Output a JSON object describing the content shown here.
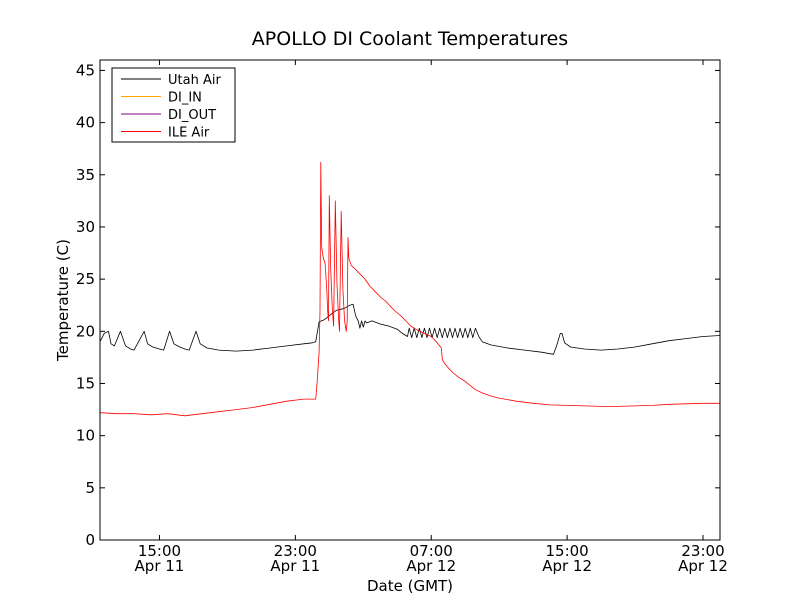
{
  "chart_data": {
    "type": "line",
    "title": "APOLLO DI Coolant Temperatures",
    "xlabel": "Date (GMT)",
    "ylabel": "Temperature (C)",
    "ylim": [
      0,
      46
    ],
    "yticks": [
      0,
      5,
      10,
      15,
      20,
      25,
      30,
      35,
      40,
      45
    ],
    "xlim_hours": [
      11.5,
      48.0
    ],
    "x_unit": "hours since Apr 11 00:00 GMT",
    "xticks": [
      {
        "hours": 15,
        "time": "15:00",
        "date": "Apr 11"
      },
      {
        "hours": 23,
        "time": "23:00",
        "date": "Apr 11"
      },
      {
        "hours": 31,
        "time": "07:00",
        "date": "Apr 12"
      },
      {
        "hours": 39,
        "time": "15:00",
        "date": "Apr 12"
      },
      {
        "hours": 47,
        "time": "23:00",
        "date": "Apr 12"
      }
    ],
    "legend_position": "top-left",
    "series": [
      {
        "name": "Utah Air",
        "color": "#000000",
        "points": [
          [
            11.5,
            19.0
          ],
          [
            11.75,
            19.8
          ],
          [
            12.0,
            20.0
          ],
          [
            12.15,
            18.8
          ],
          [
            12.35,
            18.6
          ],
          [
            12.7,
            20.0
          ],
          [
            13.0,
            18.6
          ],
          [
            13.3,
            18.3
          ],
          [
            13.5,
            18.2
          ],
          [
            14.1,
            20.0
          ],
          [
            14.3,
            18.8
          ],
          [
            14.6,
            18.5
          ],
          [
            15.0,
            18.3
          ],
          [
            15.25,
            18.2
          ],
          [
            15.6,
            20.0
          ],
          [
            15.85,
            18.8
          ],
          [
            16.2,
            18.5
          ],
          [
            16.5,
            18.3
          ],
          [
            16.75,
            18.2
          ],
          [
            17.15,
            20.0
          ],
          [
            17.4,
            18.8
          ],
          [
            17.8,
            18.4
          ],
          [
            18.5,
            18.2
          ],
          [
            19.5,
            18.1
          ],
          [
            20.5,
            18.2
          ],
          [
            21.5,
            18.4
          ],
          [
            22.5,
            18.6
          ],
          [
            23.5,
            18.8
          ],
          [
            24.0,
            18.9
          ],
          [
            24.2,
            19.0
          ],
          [
            24.4,
            20.9
          ],
          [
            24.7,
            21.1
          ],
          [
            25.0,
            21.5
          ],
          [
            25.4,
            22.0
          ],
          [
            25.9,
            22.2
          ],
          [
            26.2,
            22.5
          ],
          [
            26.4,
            22.6
          ],
          [
            26.55,
            21.5
          ],
          [
            26.7,
            21.0
          ],
          [
            26.8,
            20.3
          ],
          [
            26.9,
            21.0
          ],
          [
            27.0,
            20.4
          ],
          [
            27.1,
            21.0
          ],
          [
            27.2,
            20.8
          ],
          [
            27.5,
            21.0
          ],
          [
            28.0,
            20.7
          ],
          [
            28.5,
            20.5
          ],
          [
            29.0,
            20.2
          ],
          [
            29.3,
            19.8
          ],
          [
            29.6,
            19.5
          ],
          [
            29.7,
            20.3
          ],
          [
            29.85,
            19.4
          ],
          [
            30.0,
            20.3
          ],
          [
            30.15,
            19.4
          ],
          [
            30.3,
            20.3
          ],
          [
            30.45,
            19.4
          ],
          [
            30.6,
            20.3
          ],
          [
            30.75,
            19.4
          ],
          [
            30.9,
            20.3
          ],
          [
            31.05,
            19.4
          ],
          [
            31.2,
            20.3
          ],
          [
            31.35,
            19.4
          ],
          [
            31.5,
            20.3
          ],
          [
            31.65,
            19.4
          ],
          [
            31.8,
            20.3
          ],
          [
            31.95,
            19.4
          ],
          [
            32.1,
            20.3
          ],
          [
            32.25,
            19.4
          ],
          [
            32.4,
            20.3
          ],
          [
            32.55,
            19.4
          ],
          [
            32.7,
            20.3
          ],
          [
            32.85,
            19.4
          ],
          [
            33.0,
            20.3
          ],
          [
            33.15,
            19.4
          ],
          [
            33.3,
            20.3
          ],
          [
            33.45,
            19.4
          ],
          [
            33.6,
            20.3
          ],
          [
            33.8,
            19.5
          ],
          [
            34.0,
            19.0
          ],
          [
            34.5,
            18.7
          ],
          [
            35.5,
            18.4
          ],
          [
            36.5,
            18.2
          ],
          [
            37.5,
            18.0
          ],
          [
            38.2,
            17.8
          ],
          [
            38.4,
            18.7
          ],
          [
            38.6,
            19.8
          ],
          [
            38.7,
            19.8
          ],
          [
            38.85,
            18.9
          ],
          [
            39.2,
            18.5
          ],
          [
            40.0,
            18.3
          ],
          [
            41.0,
            18.2
          ],
          [
            42.0,
            18.3
          ],
          [
            43.0,
            18.5
          ],
          [
            44.0,
            18.8
          ],
          [
            45.0,
            19.1
          ],
          [
            46.0,
            19.3
          ],
          [
            47.0,
            19.5
          ],
          [
            48.0,
            19.6
          ]
        ]
      },
      {
        "name": "DI_IN",
        "color": "#ffa500",
        "points": []
      },
      {
        "name": "DI_OUT",
        "color": "#800080",
        "points": []
      },
      {
        "name": "ILE Air",
        "color": "#ff0000",
        "points": [
          [
            11.5,
            12.2
          ],
          [
            12.5,
            12.1
          ],
          [
            13.5,
            12.1
          ],
          [
            14.5,
            12.0
          ],
          [
            15.5,
            12.1
          ],
          [
            16.5,
            11.9
          ],
          [
            17.5,
            12.1
          ],
          [
            18.5,
            12.3
          ],
          [
            19.5,
            12.5
          ],
          [
            20.5,
            12.7
          ],
          [
            21.5,
            13.0
          ],
          [
            22.5,
            13.3
          ],
          [
            23.5,
            13.5
          ],
          [
            24.2,
            13.5
          ],
          [
            24.25,
            14.5
          ],
          [
            24.3,
            15.5
          ],
          [
            24.4,
            18.0
          ],
          [
            24.45,
            22.0
          ],
          [
            24.5,
            36.2
          ],
          [
            24.55,
            28.0
          ],
          [
            24.65,
            27.0
          ],
          [
            24.75,
            26.5
          ],
          [
            24.85,
            24.0
          ],
          [
            24.9,
            22.0
          ],
          [
            24.95,
            21.0
          ],
          [
            25.0,
            33.0
          ],
          [
            25.08,
            26.0
          ],
          [
            25.18,
            22.0
          ],
          [
            25.25,
            20.5
          ],
          [
            25.35,
            32.5
          ],
          [
            25.45,
            24.5
          ],
          [
            25.55,
            21.0
          ],
          [
            25.6,
            20.0
          ],
          [
            25.7,
            31.5
          ],
          [
            25.8,
            24.0
          ],
          [
            25.9,
            21.0
          ],
          [
            26.0,
            20.0
          ],
          [
            26.05,
            21.0
          ],
          [
            26.1,
            29.0
          ],
          [
            26.15,
            27.0
          ],
          [
            26.3,
            26.3
          ],
          [
            26.5,
            26.0
          ],
          [
            26.8,
            25.5
          ],
          [
            27.1,
            25.0
          ],
          [
            27.4,
            24.3
          ],
          [
            27.7,
            23.8
          ],
          [
            28.0,
            23.3
          ],
          [
            28.3,
            22.9
          ],
          [
            28.6,
            22.4
          ],
          [
            28.9,
            21.9
          ],
          [
            29.2,
            21.5
          ],
          [
            29.5,
            21.0
          ],
          [
            29.8,
            20.5
          ],
          [
            30.2,
            20.1
          ],
          [
            30.6,
            19.8
          ],
          [
            31.0,
            19.5
          ],
          [
            31.3,
            19.0
          ],
          [
            31.6,
            18.4
          ],
          [
            31.65,
            17.3
          ],
          [
            31.8,
            16.9
          ],
          [
            32.0,
            16.5
          ],
          [
            32.3,
            16.0
          ],
          [
            32.6,
            15.6
          ],
          [
            33.0,
            15.2
          ],
          [
            33.3,
            14.8
          ],
          [
            33.6,
            14.4
          ],
          [
            34.0,
            14.1
          ],
          [
            34.5,
            13.8
          ],
          [
            35.0,
            13.6
          ],
          [
            36.0,
            13.3
          ],
          [
            37.0,
            13.1
          ],
          [
            38.0,
            12.95
          ],
          [
            39.0,
            12.9
          ],
          [
            40.0,
            12.85
          ],
          [
            41.0,
            12.8
          ],
          [
            42.0,
            12.8
          ],
          [
            43.0,
            12.85
          ],
          [
            44.0,
            12.9
          ],
          [
            45.0,
            13.0
          ],
          [
            46.0,
            13.05
          ],
          [
            47.0,
            13.1
          ],
          [
            48.0,
            13.1
          ]
        ]
      }
    ]
  }
}
